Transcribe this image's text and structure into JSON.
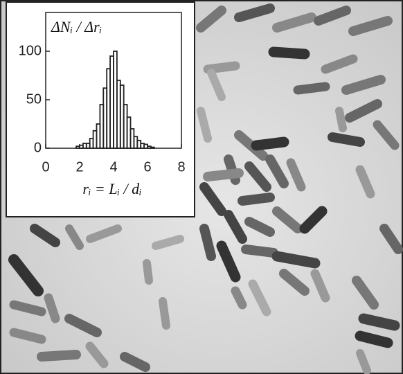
{
  "chart_data": {
    "type": "histogram",
    "ylabel": "ΔNᵢ / Δrᵢ",
    "xlabel": "rᵢ = Lᵢ / dᵢ",
    "bins": [
      1.8,
      2.0,
      2.2,
      2.4,
      2.6,
      2.8,
      3.0,
      3.2,
      3.4,
      3.6,
      3.8,
      4.0,
      4.2,
      4.4,
      4.6,
      4.8,
      5.0,
      5.2,
      5.4,
      5.6,
      5.8,
      6.0,
      6.2,
      6.4
    ],
    "values": [
      2,
      3,
      5,
      5,
      10,
      18,
      25,
      45,
      62,
      82,
      95,
      100,
      70,
      65,
      45,
      32,
      20,
      12,
      8,
      5,
      4,
      2,
      1
    ],
    "color": "#222222",
    "xlim": [
      0,
      8
    ],
    "ylim": [
      0,
      140
    ],
    "xticks": [
      0,
      2,
      4,
      6,
      8
    ],
    "yticks": [
      0,
      50,
      100
    ]
  }
}
